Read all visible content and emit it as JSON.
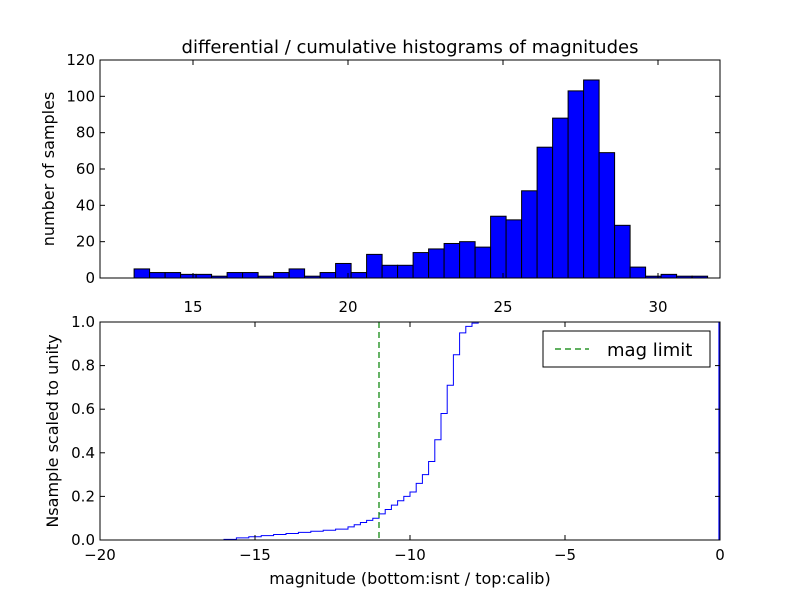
{
  "chart_data": [
    {
      "type": "bar",
      "title": "differential / cumulative histograms of magnitudes",
      "xlabel": "",
      "ylabel": "number of samples",
      "xlim": [
        12.0,
        32.0
      ],
      "ylim": [
        0,
        120
      ],
      "xticks": [
        "15",
        "20",
        "25",
        "30"
      ],
      "yticks": [
        "0",
        "20",
        "40",
        "60",
        "80",
        "100",
        "120"
      ],
      "bin_start": 13.1,
      "bin_width": 0.5,
      "values": [
        5,
        3,
        3,
        2,
        2,
        1,
        3,
        3,
        1,
        3,
        5,
        1,
        3,
        8,
        3,
        13,
        7,
        7,
        14,
        16,
        19,
        20,
        17,
        34,
        32,
        48,
        72,
        88,
        103,
        109,
        69,
        29,
        6,
        1,
        2,
        1,
        1
      ],
      "bar_color": "#0000ff"
    },
    {
      "type": "line",
      "title": "",
      "xlabel": "magnitude (bottom:isnt / top:calib)",
      "ylabel": "Nsample scaled to unity",
      "xlim": [
        -20,
        0
      ],
      "ylim": [
        0.0,
        1.0
      ],
      "xticks": [
        "−20",
        "−15",
        "−10",
        "−5",
        "0"
      ],
      "yticks": [
        "0.0",
        "0.2",
        "0.4",
        "0.6",
        "0.8",
        "1.0"
      ],
      "series": [
        {
          "name": "",
          "color": "#0000ff",
          "step": true,
          "x": [
            -20.0,
            -16.0,
            -15.6,
            -15.2,
            -14.8,
            -14.4,
            -14.0,
            -13.6,
            -13.2,
            -12.8,
            -12.4,
            -12.0,
            -11.8,
            -11.6,
            -11.4,
            -11.2,
            -11.0,
            -10.8,
            -10.6,
            -10.4,
            -10.2,
            -10.0,
            -9.8,
            -9.6,
            -9.4,
            -9.2,
            -9.0,
            -8.8,
            -8.6,
            -8.4,
            -8.2,
            -8.0,
            -7.8,
            -7.6,
            -7.4,
            -7.2,
            -7.0,
            -0.05
          ],
          "y": [
            0.0,
            0.003,
            0.01,
            0.015,
            0.02,
            0.025,
            0.03,
            0.035,
            0.04,
            0.045,
            0.05,
            0.06,
            0.07,
            0.08,
            0.09,
            0.1,
            0.12,
            0.14,
            0.16,
            0.18,
            0.2,
            0.22,
            0.26,
            0.3,
            0.36,
            0.46,
            0.58,
            0.71,
            0.85,
            0.95,
            0.98,
            0.995,
            1.0,
            1.0,
            1.0,
            1.0,
            1.0,
            1.0
          ]
        },
        {
          "name": "mag limit",
          "color": "#008000",
          "dashed": true,
          "vline": -11.0
        }
      ],
      "legend": "top-right"
    }
  ]
}
